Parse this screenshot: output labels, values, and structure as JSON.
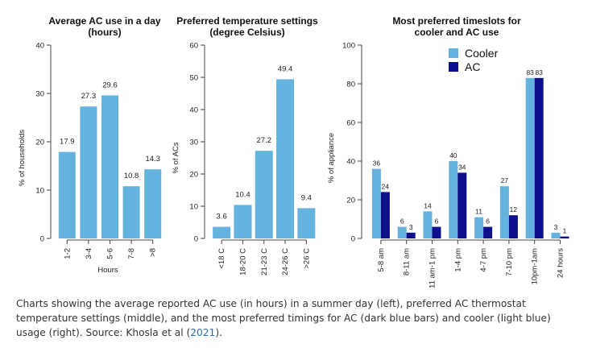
{
  "chart_data": [
    {
      "type": "bar",
      "title": "Average AC use in a day\n(hours)",
      "xlabel": "Hours",
      "ylabel": "% of households",
      "categories": [
        "1-2",
        "3-4",
        "5-6",
        "7-8",
        ">8"
      ],
      "values": [
        17.9,
        27.3,
        29.6,
        10.8,
        14.3
      ],
      "value_labels": [
        "17.9",
        "27.3",
        "29.6",
        "10.8",
        "14.3"
      ],
      "ylim": [
        0,
        40
      ],
      "yticks": [
        0,
        10,
        20,
        30,
        40
      ],
      "color": "#64b3de",
      "grid": false
    },
    {
      "type": "bar",
      "title": "Preferred temperature settings\n(degree Celsius)",
      "xlabel": "",
      "ylabel": "% of ACs",
      "categories": [
        "<18 C",
        "18-20 C",
        "21-23 C",
        "24-26 C",
        ">26 C"
      ],
      "values": [
        3.6,
        10.4,
        27.2,
        49.4,
        9.4
      ],
      "value_labels": [
        "3.6",
        "10.4",
        "27.2",
        "49.4",
        "9.4"
      ],
      "ylim": [
        0,
        60
      ],
      "yticks": [
        0,
        10,
        20,
        30,
        40,
        50,
        60
      ],
      "color": "#64b3de",
      "grid": false
    },
    {
      "type": "bar",
      "title": "Most preferred timeslots for\ncooler and AC use",
      "xlabel": "",
      "ylabel": "% of appliance",
      "categories": [
        "5-8 am",
        "8-11 am",
        "11 am-1 pm",
        "1-4 pm",
        "4-7 pm",
        "7-10 pm",
        "10pm-1am",
        "24 hours"
      ],
      "series": [
        {
          "name": "Cooler",
          "color": "#64b3de",
          "values": [
            36,
            6,
            14,
            40,
            11,
            27,
            83,
            3
          ],
          "value_labels": [
            "36",
            "6",
            "14",
            "40",
            "11",
            "27",
            "83",
            "3"
          ]
        },
        {
          "name": "AC",
          "color": "#0d0f8c",
          "values": [
            24,
            3,
            6,
            34,
            6,
            12,
            83,
            1
          ],
          "value_labels": [
            "24",
            "3",
            "6",
            "34",
            "6",
            "12",
            "83",
            "1"
          ]
        }
      ],
      "ylim": [
        0,
        100
      ],
      "yticks": [
        0,
        20,
        40,
        60,
        80,
        100
      ],
      "legend": "top-left",
      "grid": false
    }
  ],
  "caption": {
    "text_before": "Charts showing the average reported AC use (in hours) in a summer day (left), preferred AC thermostat temperature settings (middle), and the most preferred timings for AC (dark blue bars) and cooler (light blue) usage (right). Source: Khosla et al (",
    "link": "2021",
    "text_after": ")."
  }
}
